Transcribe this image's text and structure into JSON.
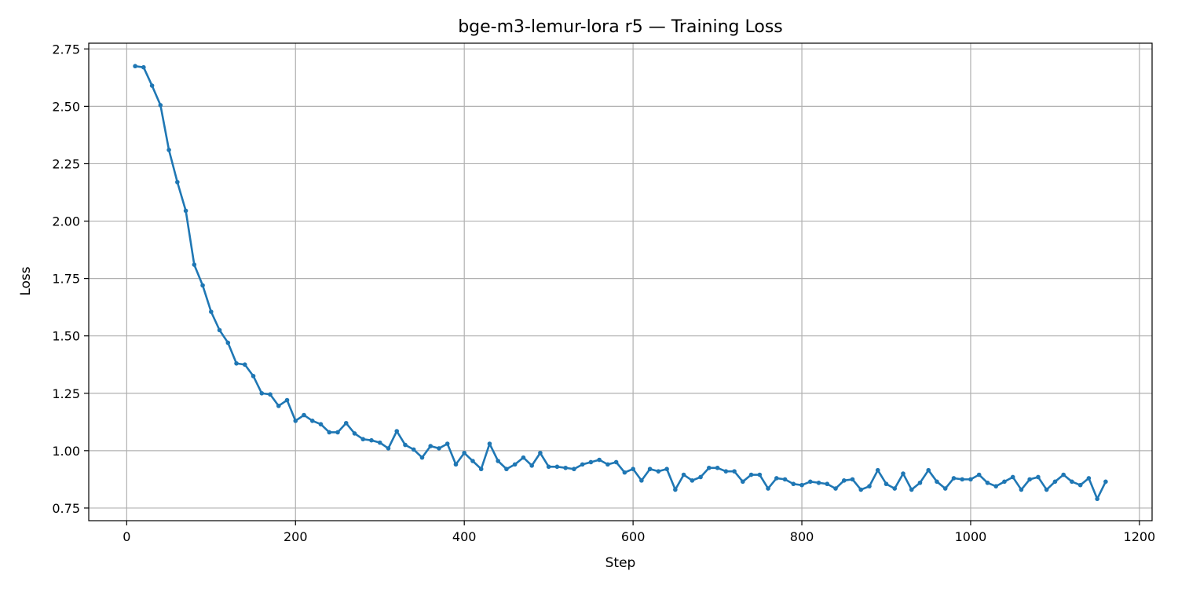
{
  "chart_data": {
    "type": "line",
    "title": "bge-m3-lemur-lora r5 — Training Loss",
    "xlabel": "Step",
    "ylabel": "Loss",
    "xlim": [
      -45,
      1215
    ],
    "ylim": [
      0.695,
      2.775
    ],
    "xticks": [
      0,
      200,
      400,
      600,
      800,
      1000,
      1200
    ],
    "yticks": [
      0.75,
      1.0,
      1.25,
      1.5,
      1.75,
      2.0,
      2.25,
      2.5,
      2.75
    ],
    "xtick_labels": [
      "0",
      "200",
      "400",
      "600",
      "800",
      "1000",
      "1200"
    ],
    "ytick_labels": [
      "0.75",
      "1.00",
      "1.25",
      "1.50",
      "1.75",
      "2.00",
      "2.25",
      "2.50",
      "2.75"
    ],
    "grid": true,
    "color": "#1f77b4",
    "x": [
      10,
      20,
      30,
      40,
      50,
      60,
      70,
      80,
      90,
      100,
      110,
      120,
      130,
      140,
      150,
      160,
      170,
      180,
      190,
      200,
      210,
      220,
      230,
      240,
      250,
      260,
      270,
      280,
      290,
      300,
      310,
      320,
      330,
      340,
      350,
      360,
      370,
      380,
      390,
      400,
      410,
      420,
      430,
      440,
      450,
      460,
      470,
      480,
      490,
      500,
      510,
      520,
      530,
      540,
      550,
      560,
      570,
      580,
      590,
      600,
      610,
      620,
      630,
      640,
      650,
      660,
      670,
      680,
      690,
      700,
      710,
      720,
      730,
      740,
      750,
      760,
      770,
      780,
      790,
      800,
      810,
      820,
      830,
      840,
      850,
      860,
      870,
      880,
      890,
      900,
      910,
      920,
      930,
      940,
      950,
      960,
      970,
      980,
      990,
      1000,
      1010,
      1020,
      1030,
      1040,
      1050,
      1060,
      1070,
      1080,
      1090,
      1100,
      1110,
      1120,
      1130,
      1140,
      1150,
      1160
    ],
    "y": [
      2.675,
      2.67,
      2.59,
      2.505,
      2.31,
      2.17,
      2.045,
      1.81,
      1.72,
      1.605,
      1.525,
      1.47,
      1.38,
      1.375,
      1.325,
      1.25,
      1.245,
      1.195,
      1.22,
      1.13,
      1.155,
      1.13,
      1.115,
      1.08,
      1.08,
      1.12,
      1.075,
      1.05,
      1.045,
      1.035,
      1.01,
      1.085,
      1.025,
      1.005,
      0.97,
      1.02,
      1.01,
      1.03,
      0.94,
      0.99,
      0.955,
      0.92,
      1.03,
      0.955,
      0.92,
      0.94,
      0.97,
      0.935,
      0.99,
      0.93,
      0.93,
      0.925,
      0.92,
      0.94,
      0.95,
      0.96,
      0.94,
      0.95,
      0.905,
      0.92,
      0.87,
      0.92,
      0.91,
      0.92,
      0.83,
      0.895,
      0.87,
      0.885,
      0.925,
      0.925,
      0.91,
      0.91,
      0.865,
      0.895,
      0.895,
      0.835,
      0.88,
      0.875,
      0.855,
      0.85,
      0.865,
      0.86,
      0.855,
      0.835,
      0.87,
      0.875,
      0.83,
      0.845,
      0.915,
      0.855,
      0.835,
      0.9,
      0.83,
      0.86,
      0.915,
      0.865,
      0.835,
      0.88,
      0.875,
      0.875,
      0.895,
      0.86,
      0.845,
      0.865,
      0.885,
      0.83,
      0.875,
      0.885,
      0.83,
      0.865,
      0.895,
      0.865,
      0.85,
      0.88,
      0.79,
      0.865
    ]
  }
}
